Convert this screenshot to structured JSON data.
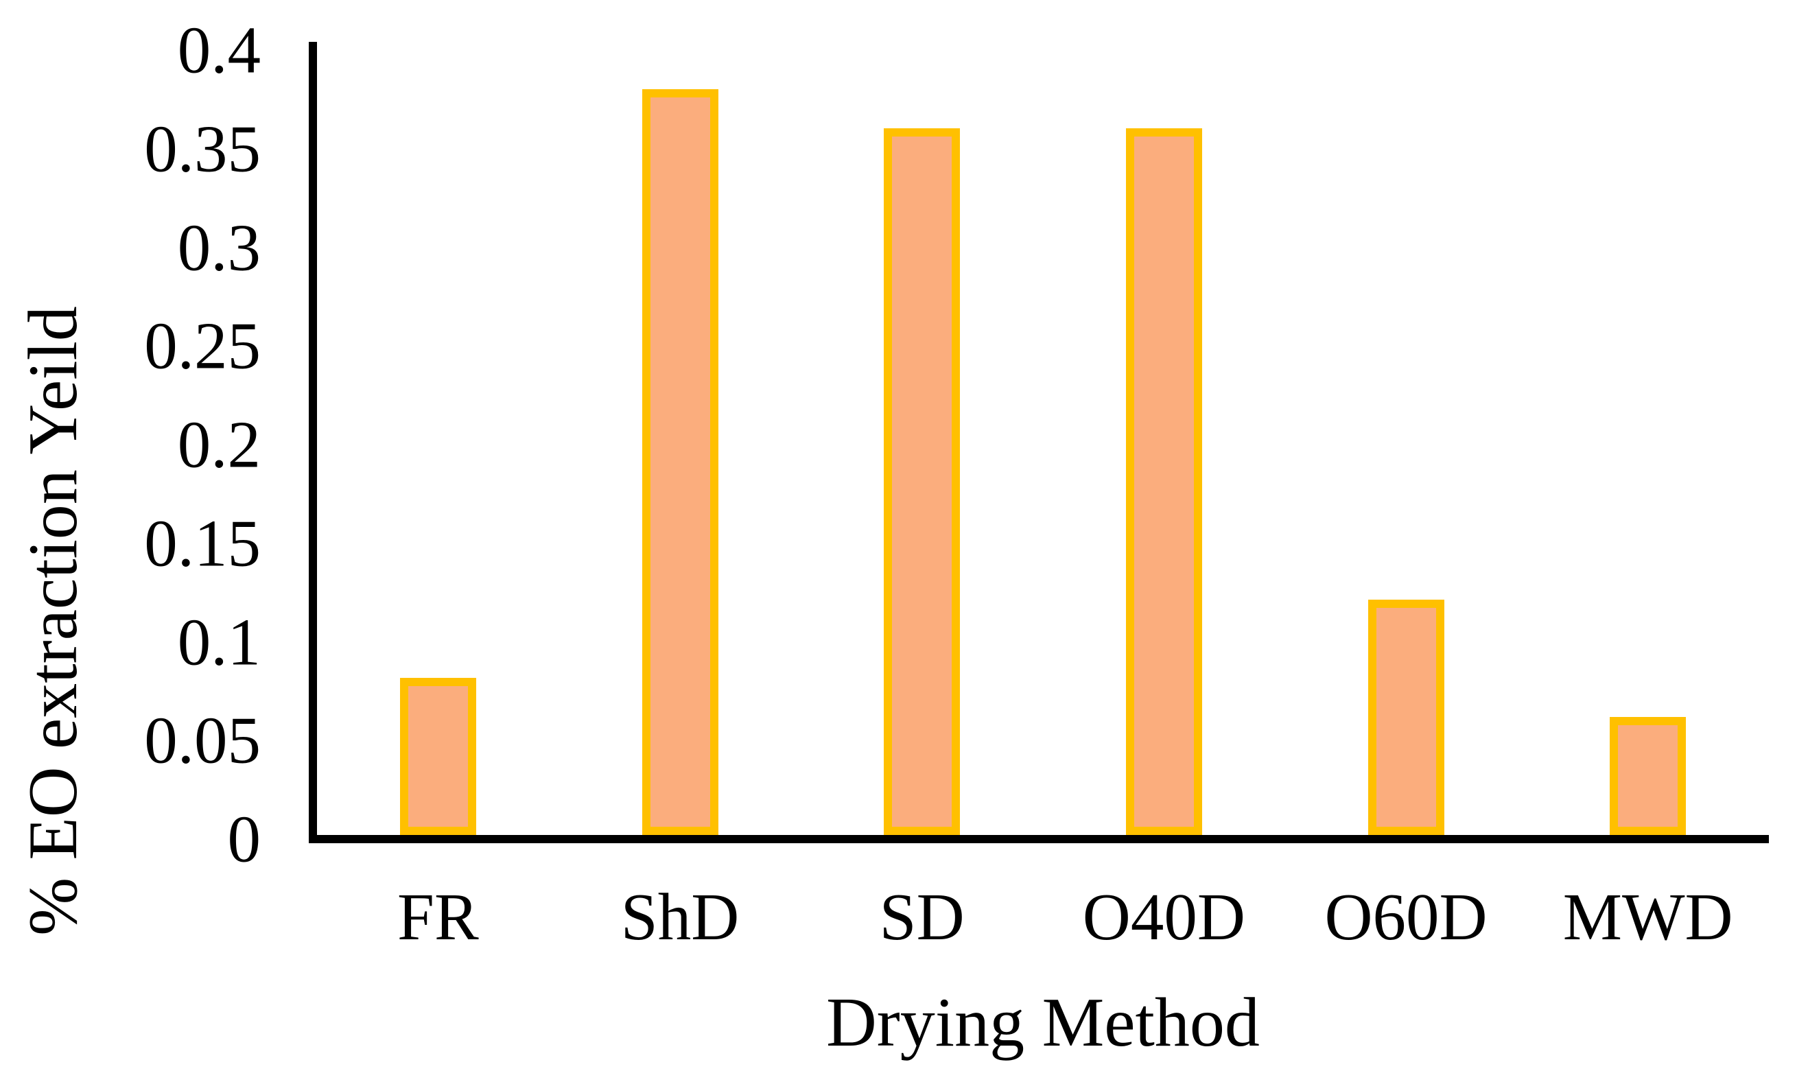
{
  "chart_data": {
    "type": "bar",
    "categories": [
      "FR",
      "ShD",
      "SD",
      "O40D",
      "O60D",
      "MWD"
    ],
    "values": [
      0.08,
      0.38,
      0.36,
      0.36,
      0.12,
      0.06
    ],
    "title": "",
    "xlabel": "Drying Method",
    "ylabel": "% EO extraction Yeild",
    "ylim": [
      0,
      0.4
    ],
    "ytick_labels": [
      "0.4",
      "0.35",
      "0.3",
      "0.25",
      "0.2",
      "0.15",
      "0.1",
      "0.05",
      "0"
    ],
    "grid": false,
    "legend": "none",
    "colors": {
      "bar_fill": "#FBAD7D",
      "bar_border": "#FFC000",
      "axis": "#000000",
      "text": "#000000",
      "background": "#FFFFFF"
    }
  }
}
